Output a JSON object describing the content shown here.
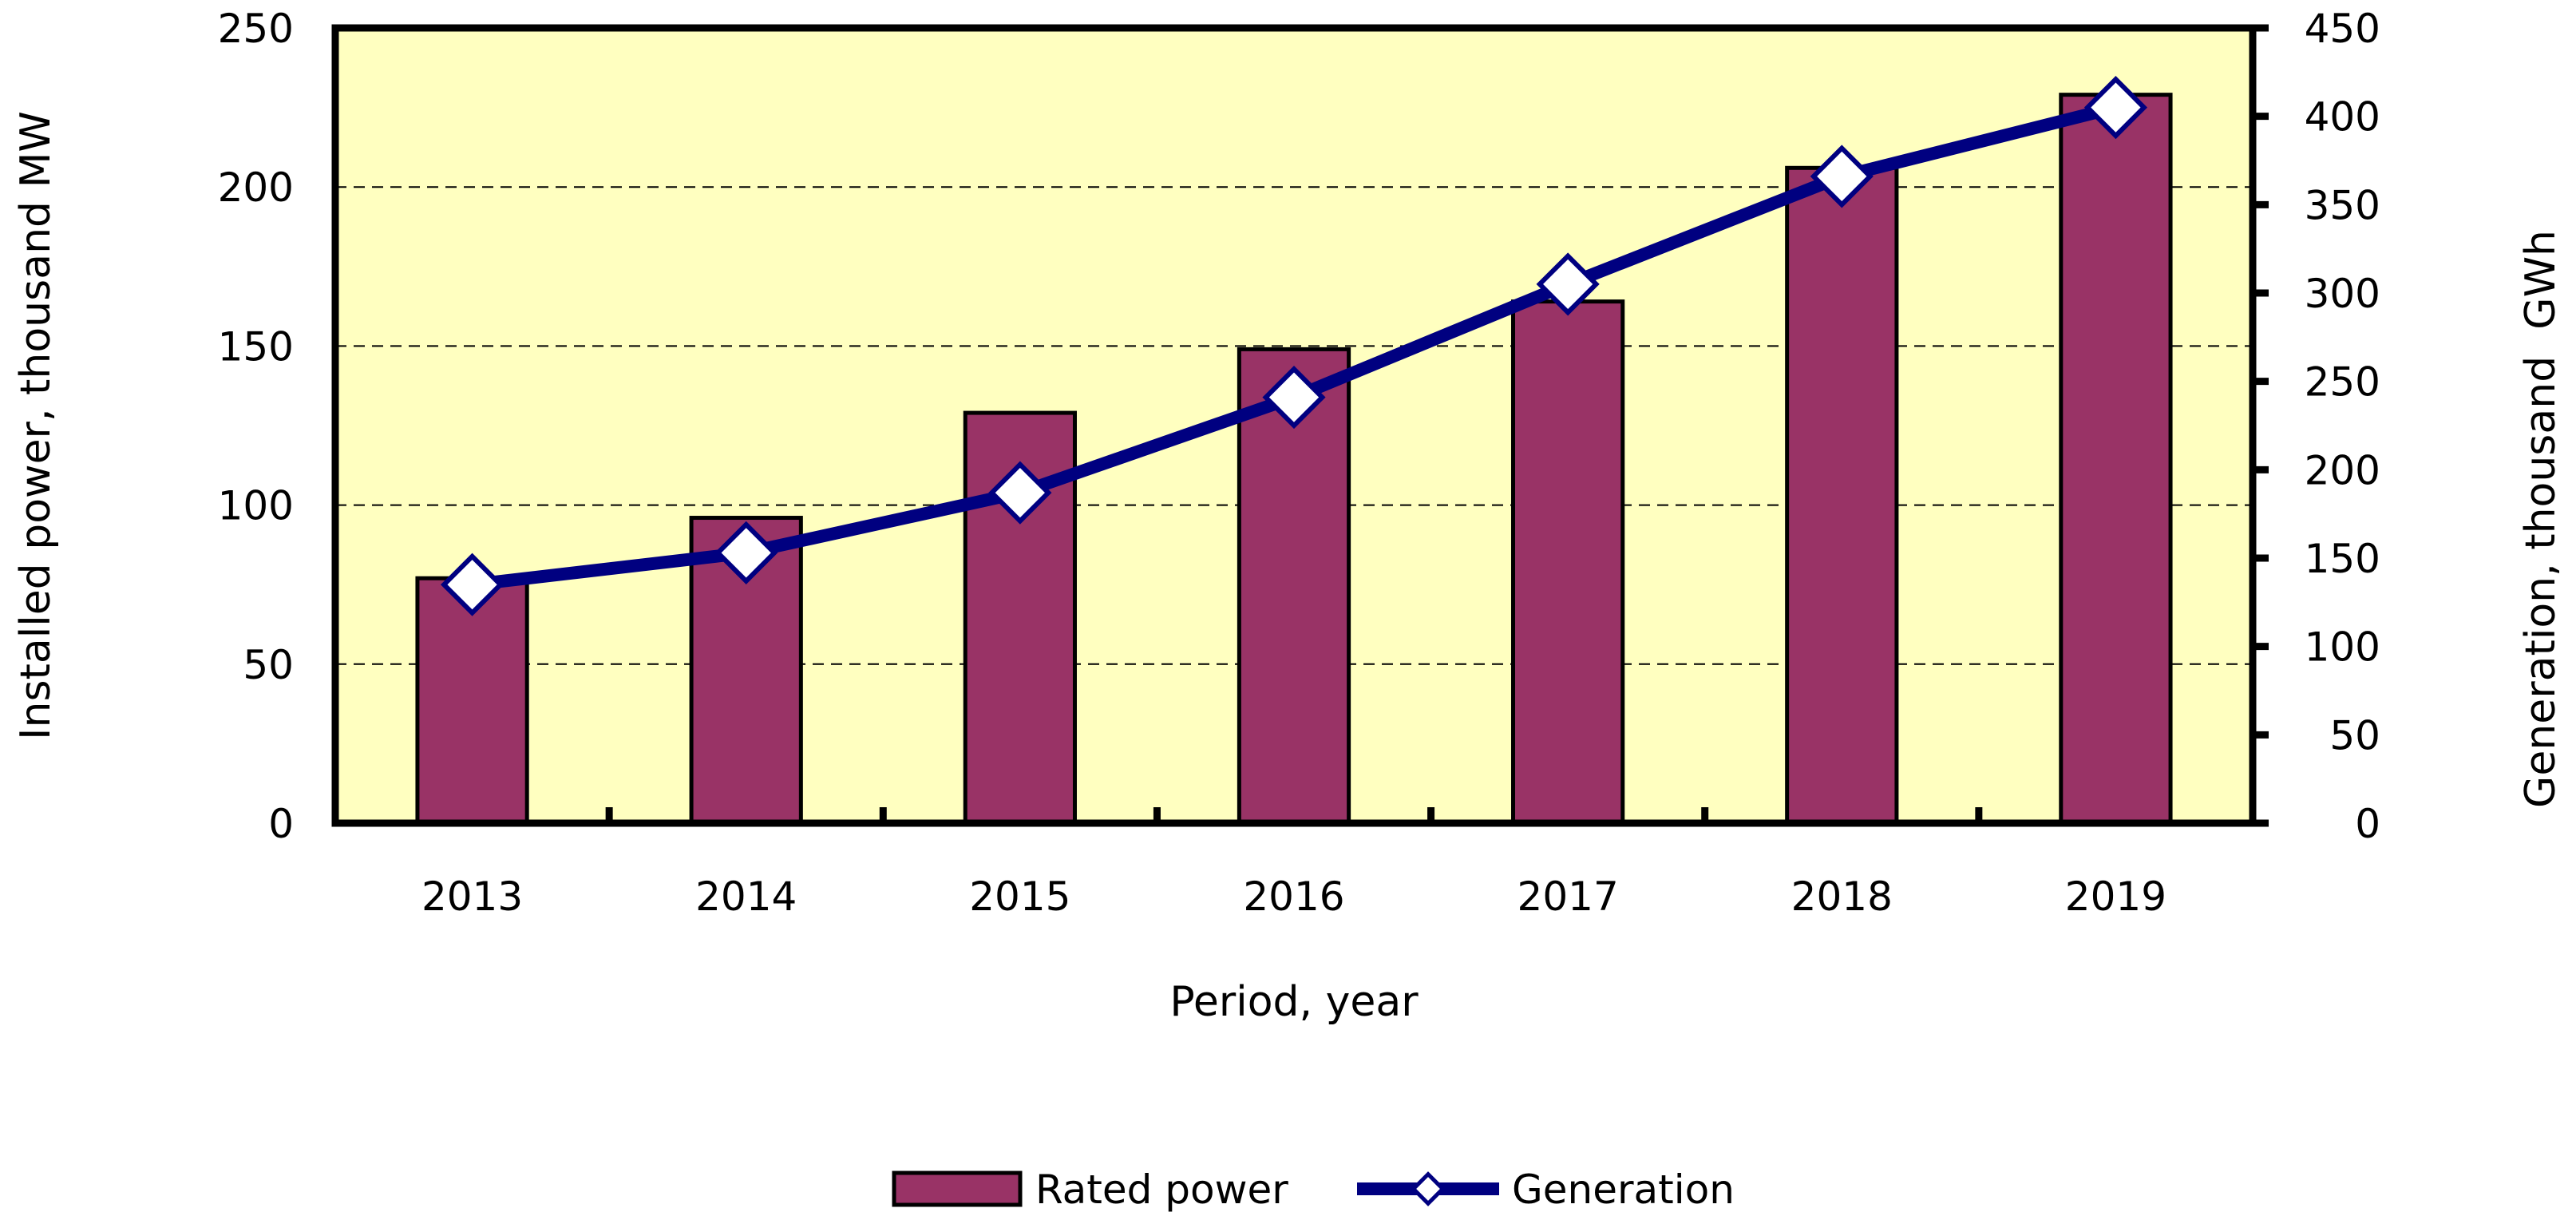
{
  "chart_data": {
    "type": "bar",
    "categories": [
      "2013",
      "2014",
      "2015",
      "2016",
      "2017",
      "2018",
      "2019"
    ],
    "series": [
      {
        "name": "Rated power",
        "type": "bar",
        "axis": "left",
        "values": [
          77,
          96,
          129,
          149,
          164,
          206,
          229
        ],
        "color": "#993366"
      },
      {
        "name": "Generation",
        "type": "line",
        "axis": "right",
        "values": [
          135,
          153,
          187,
          241,
          305,
          366,
          405
        ],
        "color": "#000080"
      }
    ],
    "xlabel": "Period, year",
    "ylabel": "Installed power, thousand MW",
    "y2label": "Generation, thousand  GWh",
    "ylim": [
      0,
      250
    ],
    "y2lim": [
      0,
      450
    ],
    "yticks": [
      "0",
      "50",
      "100",
      "150",
      "200",
      "250"
    ],
    "y2ticks": [
      "0",
      "50",
      "100",
      "150",
      "200",
      "250",
      "300",
      "350",
      "400",
      "450"
    ],
    "grid": true,
    "legend": "bottom",
    "plot_background": "#ffffc0"
  }
}
